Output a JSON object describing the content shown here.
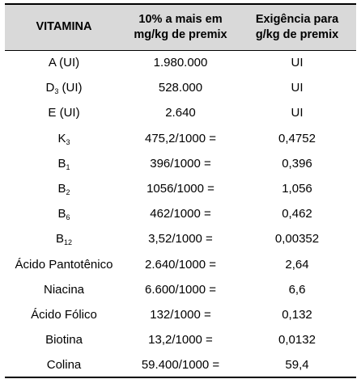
{
  "table": {
    "headers": [
      {
        "line1": "VITAMINA",
        "line2": ""
      },
      {
        "line1": "10% a mais em",
        "line2": "mg/kg de premix"
      },
      {
        "line1": "Exigência para",
        "line2": "g/kg de premix"
      }
    ],
    "rows": [
      {
        "name": "A (UI)",
        "sub": "",
        "name_suffix": "",
        "calc": "1.980.000",
        "result": "UI"
      },
      {
        "name": "D",
        "sub": "3",
        "name_suffix": " (UI)",
        "calc": "528.000",
        "result": "UI"
      },
      {
        "name": "E (UI)",
        "sub": "",
        "name_suffix": "",
        "calc": "2.640",
        "result": "UI"
      },
      {
        "name": "K",
        "sub": "3",
        "name_suffix": "",
        "calc": "475,2/1000 =",
        "result": "0,4752"
      },
      {
        "name": "B",
        "sub": "1",
        "name_suffix": "",
        "calc": "396/1000 =",
        "result": "0,396"
      },
      {
        "name": "B",
        "sub": "2",
        "name_suffix": "",
        "calc": "1056/1000 =",
        "result": "1,056"
      },
      {
        "name": "B",
        "sub": "6",
        "name_suffix": "",
        "calc": "462/1000 =",
        "result": "0,462"
      },
      {
        "name": "B",
        "sub": "12",
        "name_suffix": "",
        "calc": "3,52/1000 =",
        "result": "0,00352"
      },
      {
        "name": "Ácido Pantotênico",
        "sub": "",
        "name_suffix": "",
        "calc": "2.640/1000 =",
        "result": "2,64"
      },
      {
        "name": "Niacina",
        "sub": "",
        "name_suffix": "",
        "calc": "6.600/1000 =",
        "result": "6,6"
      },
      {
        "name": "Ácido Fólico",
        "sub": "",
        "name_suffix": "",
        "calc": "132/1000 =",
        "result": "0,132"
      },
      {
        "name": "Biotina",
        "sub": "",
        "name_suffix": "",
        "calc": "13,2/1000 =",
        "result": "0,0132"
      },
      {
        "name": "Colina",
        "sub": "",
        "name_suffix": "",
        "calc": "59.400/1000 =",
        "result": "59,4"
      }
    ]
  },
  "colors": {
    "header_background": "#d9d9d9",
    "rule": "#000000",
    "text": "#000000"
  }
}
